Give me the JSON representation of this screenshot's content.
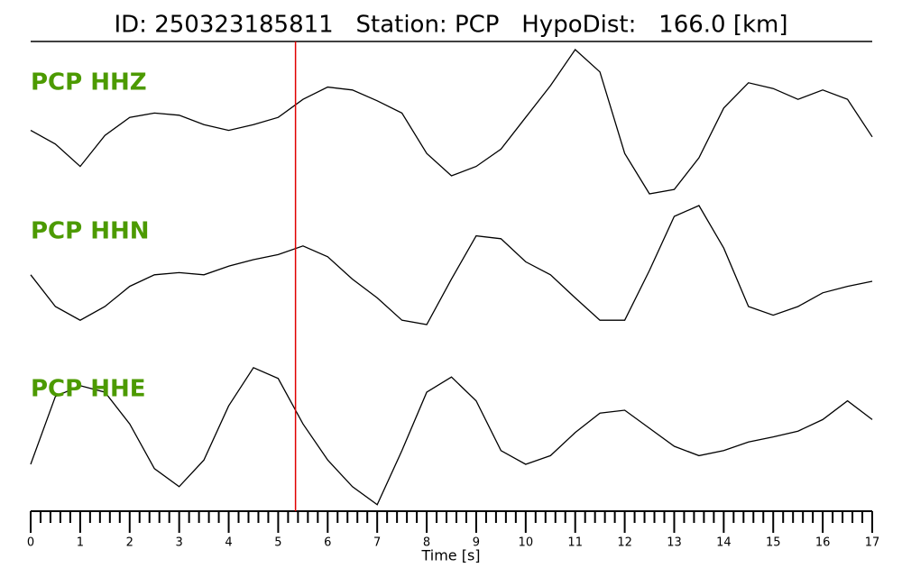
{
  "chart_data": {
    "type": "seismogram",
    "title": "ID: 250323185811   Station: PCP   HypoDist:   166.0 [km]",
    "xlabel": "Time [s]",
    "x": [
      0,
      0.5,
      1,
      1.5,
      2,
      2.5,
      3,
      3.5,
      4,
      4.5,
      5,
      5.5,
      6,
      6.5,
      7,
      7.5,
      8,
      8.5,
      9,
      9.5,
      10,
      10.5,
      11,
      11.5,
      12,
      12.5,
      13,
      13.5,
      14,
      14.5,
      15,
      15.5,
      16,
      16.5,
      17
    ],
    "series": [
      {
        "name": "PCP HHZ",
        "color": "#000000",
        "values": [
          -0.12,
          -0.31,
          -0.62,
          -0.19,
          0.06,
          0.12,
          0.09,
          -0.04,
          -0.12,
          -0.04,
          0.06,
          0.31,
          0.48,
          0.44,
          0.29,
          0.12,
          -0.44,
          -0.75,
          -0.62,
          -0.38,
          0.06,
          0.5,
          1.0,
          0.69,
          -0.44,
          -1.0,
          -0.94,
          -0.5,
          0.19,
          0.54,
          0.46,
          0.31,
          0.44,
          0.31,
          -0.21
        ]
      },
      {
        "name": "PCP HHN",
        "color": "#000000",
        "values": [
          -0.06,
          -0.5,
          -0.69,
          -0.5,
          -0.22,
          -0.06,
          -0.03,
          -0.06,
          0.06,
          0.15,
          0.22,
          0.34,
          0.19,
          -0.12,
          -0.38,
          -0.69,
          -0.75,
          -0.12,
          0.48,
          0.44,
          0.12,
          -0.06,
          -0.38,
          -0.69,
          -0.69,
          0,
          0.75,
          0.9,
          0.31,
          -0.5,
          -0.62,
          -0.5,
          -0.31,
          -0.22,
          -0.15
        ]
      },
      {
        "name": "PCP HHE",
        "color": "#000000",
        "values": [
          -0.5,
          0.44,
          0.59,
          0.5,
          0.06,
          -0.56,
          -0.81,
          -0.44,
          0.31,
          0.84,
          0.69,
          0.06,
          -0.44,
          -0.81,
          -1.06,
          -0.31,
          0.5,
          0.71,
          0.38,
          -0.31,
          -0.5,
          -0.38,
          -0.06,
          0.21,
          0.25,
          0,
          -0.25,
          -0.38,
          -0.31,
          -0.19,
          -0.12,
          -0.04,
          0.12,
          0.38,
          0.12
        ]
      }
    ],
    "label_color": "#4c9a00",
    "pick_time": 5.35,
    "pick_color": "#e00000",
    "xlim": [
      0,
      17
    ],
    "ylim": [
      -1.1,
      1.1
    ],
    "xticks": [
      0,
      1,
      2,
      3,
      4,
      5,
      6,
      7,
      8,
      9,
      10,
      11,
      12,
      13,
      14,
      15,
      16,
      17
    ],
    "xminorticks": [
      0.2,
      0.4,
      0.6,
      0.8,
      1.2,
      1.4,
      1.6,
      1.8,
      2.2,
      2.4,
      2.6,
      2.8,
      3.2,
      3.4,
      3.6,
      3.8,
      4.2,
      4.4,
      4.6,
      4.8,
      5.2,
      5.4,
      5.6,
      5.8,
      6.2,
      6.4,
      6.6,
      6.8,
      7.2,
      7.4,
      7.6,
      7.8,
      8.2,
      8.4,
      8.6,
      8.8,
      9.2,
      9.4,
      9.6,
      9.8,
      10.2,
      10.4,
      10.6,
      10.8,
      11.2,
      11.4,
      11.6,
      11.8,
      12.2,
      12.4,
      12.6,
      12.8,
      13.2,
      13.4,
      13.6,
      13.8,
      14.2,
      14.4,
      14.6,
      14.8,
      15.2,
      15.4,
      15.6,
      15.8,
      16.2,
      16.4,
      16.6,
      16.8
    ]
  }
}
